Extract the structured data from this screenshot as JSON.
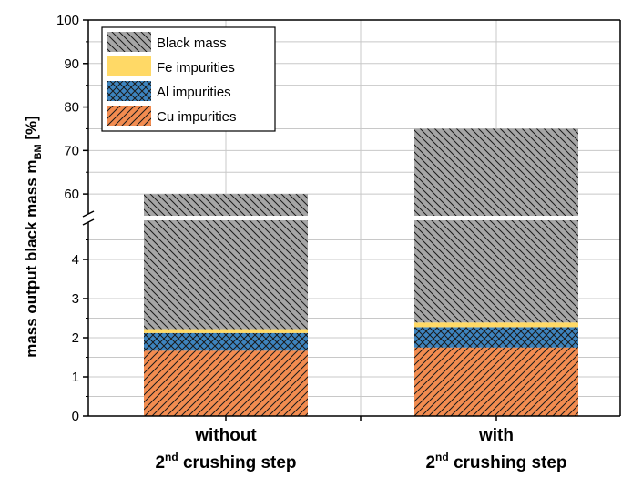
{
  "chart_data": {
    "type": "bar",
    "stacked": true,
    "broken_y_axis": true,
    "ylabel": "mass output black mass m",
    "ylabel_subscript": "BM",
    "ylabel_unit": "[%]",
    "categories": [
      {
        "line1": "without",
        "line2_sup": "nd",
        "line2_num": "2",
        "line2_rest": " crushing step"
      },
      {
        "line1": "with",
        "line2_sup": "nd",
        "line2_num": "2",
        "line2_rest": " crushing step"
      }
    ],
    "series": [
      {
        "name": "Cu impurities",
        "color": "#f28c50",
        "pattern": "diag-up",
        "values": [
          1.67,
          1.75
        ]
      },
      {
        "name": "Al impurities",
        "color": "#3d84bf",
        "pattern": "crosshatch",
        "values": [
          0.45,
          0.52
        ]
      },
      {
        "name": "Fe impurities",
        "color": "#ffd966",
        "pattern": "none",
        "values": [
          0.1,
          0.12
        ]
      },
      {
        "name": "Black mass",
        "color": "#a6a6a6",
        "pattern": "diag-down",
        "values": [
          57.78,
          72.61
        ]
      }
    ],
    "totals": [
      60,
      75
    ],
    "lower_ticks": [
      "0",
      "1",
      "2",
      "3",
      "4"
    ],
    "upper_ticks": [
      "60",
      "70",
      "80",
      "90",
      "100"
    ],
    "lower_range": [
      0,
      5
    ],
    "upper_range": [
      55,
      100
    ],
    "legend_order": [
      "Black mass",
      "Fe impurities",
      "Al impurities",
      "Cu impurities"
    ],
    "legend_position": "top-left",
    "grid": true
  }
}
